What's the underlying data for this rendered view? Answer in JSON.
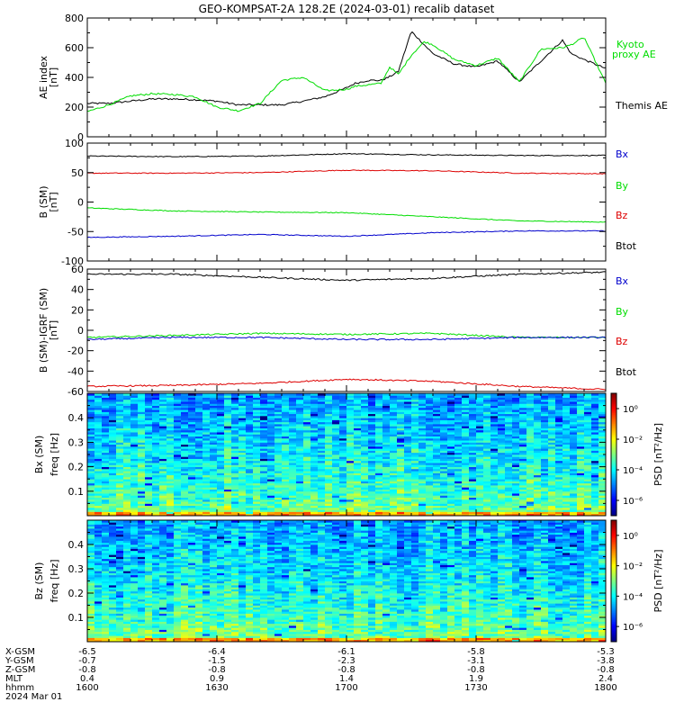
{
  "title": "GEO-KOMPSAT-2A 128.2E (2024-03-01) recalib dataset",
  "colors": {
    "black": "#000000",
    "red": "#dd0000",
    "green": "#00dd00",
    "blue": "#0000cc"
  },
  "chart_data": [
    {
      "id": "ae",
      "type": "line",
      "ylabel": "AE index",
      "yunit": "[nT]",
      "ylim": [
        0,
        800
      ],
      "yticks": [
        0,
        200,
        400,
        600,
        800
      ],
      "x_hhmm": [
        "1600",
        "1630",
        "1700",
        "1730",
        "1800"
      ],
      "legend": [
        {
          "text": "Kyoto",
          "color": "#00dd00"
        },
        {
          "text": "proxy AE",
          "color": "#00dd00"
        },
        {
          "text": "Themis AE",
          "color": "#000000"
        }
      ],
      "series": [
        {
          "name": "Themis AE",
          "color": "#000000",
          "x": [
            0,
            5,
            10,
            15,
            20,
            25,
            30,
            35,
            40,
            45,
            50,
            55,
            60,
            62,
            65,
            68,
            70,
            72,
            75,
            78,
            80,
            85,
            90,
            95,
            100,
            105,
            110,
            112,
            115,
            120
          ],
          "y": [
            225,
            225,
            240,
            255,
            255,
            250,
            240,
            215,
            215,
            215,
            240,
            270,
            330,
            360,
            380,
            380,
            405,
            440,
            710,
            620,
            560,
            490,
            470,
            510,
            370,
            510,
            650,
            560,
            520,
            460
          ]
        },
        {
          "name": "Kyoto proxy AE",
          "color": "#00dd00",
          "x": [
            0,
            5,
            10,
            15,
            20,
            25,
            30,
            35,
            40,
            45,
            50,
            55,
            60,
            62,
            65,
            68,
            70,
            72,
            75,
            78,
            80,
            85,
            90,
            95,
            100,
            105,
            110,
            112,
            115,
            120
          ],
          "y": [
            170,
            215,
            275,
            290,
            285,
            270,
            200,
            175,
            225,
            380,
            400,
            310,
            320,
            340,
            350,
            360,
            470,
            420,
            550,
            640,
            620,
            520,
            480,
            530,
            370,
            590,
            600,
            620,
            670,
            360
          ]
        }
      ]
    },
    {
      "id": "bsm",
      "type": "line",
      "ylabel": "B (SM)",
      "yunit": "[nT]",
      "ylim": [
        -100,
        100
      ],
      "yticks": [
        -100,
        -50,
        0,
        50,
        100
      ],
      "legend": [
        {
          "text": "Bx",
          "color": "#0000cc"
        },
        {
          "text": "By",
          "color": "#00dd00"
        },
        {
          "text": "Bz",
          "color": "#dd0000"
        },
        {
          "text": "Btot",
          "color": "#000000"
        }
      ],
      "series": [
        {
          "name": "Btot",
          "color": "#000000",
          "x": [
            0,
            20,
            40,
            60,
            80,
            100,
            120
          ],
          "y": [
            78,
            77,
            78,
            82,
            80,
            79,
            79
          ]
        },
        {
          "name": "Bz",
          "color": "#dd0000",
          "x": [
            0,
            20,
            40,
            60,
            80,
            100,
            120
          ],
          "y": [
            49,
            49,
            50,
            54,
            53,
            49,
            48
          ]
        },
        {
          "name": "By",
          "color": "#00dd00",
          "x": [
            0,
            20,
            40,
            60,
            80,
            100,
            120
          ],
          "y": [
            -10,
            -15,
            -17,
            -18,
            -25,
            -32,
            -34
          ]
        },
        {
          "name": "Bx",
          "color": "#0000cc",
          "x": [
            0,
            20,
            40,
            60,
            80,
            100,
            120
          ],
          "y": [
            -60,
            -58,
            -55,
            -58,
            -52,
            -49,
            -49
          ]
        }
      ]
    },
    {
      "id": "bdiff",
      "type": "line",
      "ylabel": "B (SM)-IGRF (SM)",
      "yunit": "[nT]",
      "ylim": [
        -60,
        60
      ],
      "yticks": [
        -60,
        -40,
        -20,
        0,
        20,
        40,
        60
      ],
      "legend": [
        {
          "text": "Bx",
          "color": "#0000cc"
        },
        {
          "text": "By",
          "color": "#00dd00"
        },
        {
          "text": "Bz",
          "color": "#dd0000"
        },
        {
          "text": "Btot",
          "color": "#000000"
        }
      ],
      "series": [
        {
          "name": "Btot",
          "color": "#000000",
          "x": [
            0,
            20,
            40,
            60,
            80,
            100,
            120
          ],
          "y": [
            55,
            55,
            52,
            49,
            51,
            55,
            57
          ]
        },
        {
          "name": "By",
          "color": "#00dd00",
          "x": [
            0,
            20,
            40,
            60,
            80,
            100,
            120
          ],
          "y": [
            -7,
            -5,
            -3,
            -4,
            -3,
            -7,
            -7
          ]
        },
        {
          "name": "Bx",
          "color": "#0000cc",
          "x": [
            0,
            20,
            40,
            60,
            80,
            100,
            120
          ],
          "y": [
            -9,
            -7,
            -7,
            -9,
            -9,
            -7,
            -7
          ]
        },
        {
          "name": "Bz",
          "color": "#dd0000",
          "x": [
            0,
            20,
            40,
            60,
            80,
            100,
            120
          ],
          "y": [
            -55,
            -54,
            -52,
            -48,
            -50,
            -55,
            -58
          ]
        }
      ]
    },
    {
      "id": "bx_spec",
      "type": "heatmap",
      "ylabel": "Bx (SM)",
      "ylabel2": "freq [Hz]",
      "ylim": [
        0,
        0.5
      ],
      "yticks": [
        "0.1",
        "0.2",
        "0.3",
        "0.4"
      ],
      "ytick_values": [
        0.1,
        0.2,
        0.3,
        0.4
      ],
      "colorbar_label": "PSD [nT²/Hz]",
      "colorbar_ticks": [
        "10⁰",
        "10⁻²",
        "10⁻⁴",
        "10⁻⁶"
      ],
      "colorbar_tick_log": [
        0,
        -2,
        -4,
        -6
      ],
      "clim_log": [
        -7,
        1
      ]
    },
    {
      "id": "bz_spec",
      "type": "heatmap",
      "ylabel": "Bz (SM)",
      "ylabel2": "freq [Hz]",
      "ylim": [
        0,
        0.5
      ],
      "yticks": [
        "0.1",
        "0.2",
        "0.3",
        "0.4"
      ],
      "ytick_values": [
        0.1,
        0.2,
        0.3,
        0.4
      ],
      "colorbar_label": "PSD [nT²/Hz]",
      "colorbar_ticks": [
        "10⁰",
        "10⁻²",
        "10⁻⁴",
        "10⁻⁶"
      ],
      "colorbar_tick_log": [
        0,
        -2,
        -4,
        -6
      ],
      "clim_log": [
        -7,
        1
      ]
    }
  ],
  "footer": {
    "labels": [
      "X-GSM",
      "Y-GSM",
      "Z-GSM",
      "MLT",
      "hhmm",
      "2024 Mar 01"
    ],
    "columns": [
      [
        "-6.5",
        "-0.7",
        "-0.8",
        "0.4",
        "1600"
      ],
      [
        "-6.4",
        "-1.5",
        "-0.8",
        "0.9",
        "1630"
      ],
      [
        "-6.1",
        "-2.3",
        "-0.8",
        "1.4",
        "1700"
      ],
      [
        "-5.8",
        "-3.1",
        "-0.8",
        "1.9",
        "1730"
      ],
      [
        "-5.3",
        "-3.8",
        "-0.8",
        "2.4",
        "1800"
      ]
    ]
  }
}
